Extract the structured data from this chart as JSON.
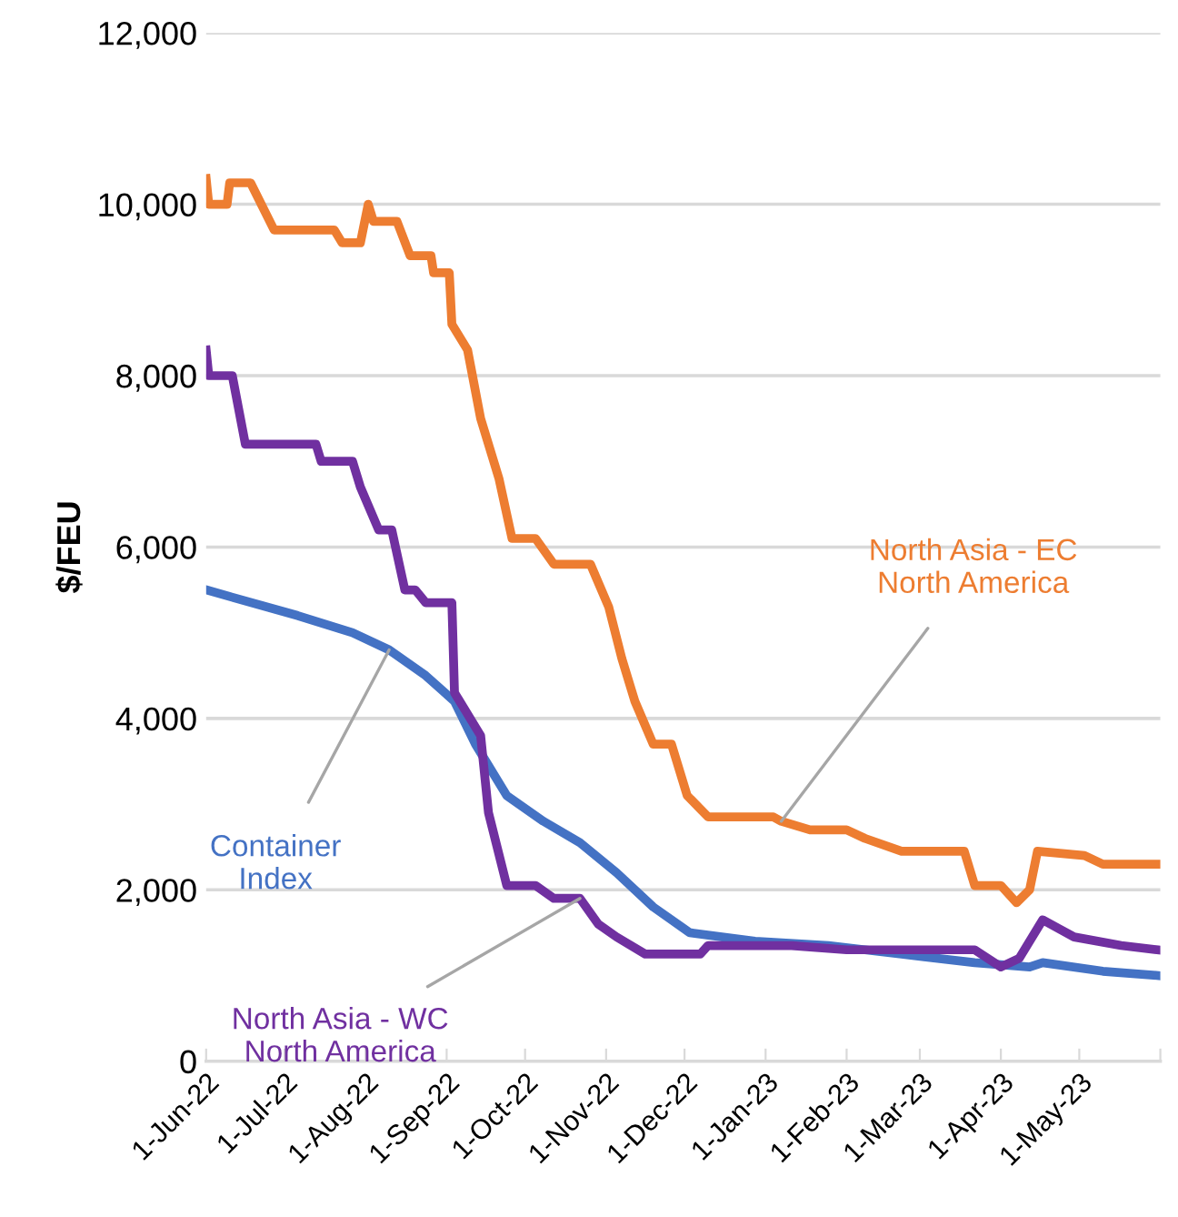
{
  "chart_data": {
    "type": "line",
    "ylabel": "$/FEU",
    "xlim": [
      "2022-06-01",
      "2023-06-01"
    ],
    "xticks": [
      {
        "value": "2022-06-01",
        "label": "1-Jun-22"
      },
      {
        "value": "2022-07-01",
        "label": "1-Jul-22"
      },
      {
        "value": "2022-08-01",
        "label": "1-Aug-22"
      },
      {
        "value": "2022-09-01",
        "label": "1-Sep-22"
      },
      {
        "value": "2022-10-01",
        "label": "1-Oct-22"
      },
      {
        "value": "2022-11-01",
        "label": "1-Nov-22"
      },
      {
        "value": "2022-12-01",
        "label": "1-Dec-22"
      },
      {
        "value": "2023-01-01",
        "label": "1-Jan-23"
      },
      {
        "value": "2023-02-01",
        "label": "1-Feb-23"
      },
      {
        "value": "2023-03-01",
        "label": "1-Mar-23"
      },
      {
        "value": "2023-04-01",
        "label": "1-Apr-23"
      },
      {
        "value": "2023-05-01",
        "label": "1-May-23"
      },
      {
        "value": "2023-06-01",
        "label": null
      }
    ],
    "ylim": [
      0,
      12000
    ],
    "yticks": [
      0,
      {
        "value": 2000,
        "label": "2,000"
      },
      {
        "value": 4000,
        "label": "4,000"
      },
      {
        "value": 6000,
        "label": "6,000"
      },
      {
        "value": 8000,
        "label": "8,000"
      },
      {
        "value": 10000,
        "label": "10,000"
      },
      {
        "value": 12000,
        "label": "12,000"
      }
    ],
    "grid": "y",
    "legend": false,
    "marker": "none",
    "line_style": "solid",
    "series": [
      {
        "name": "North Asia - EC\nNorth America",
        "color": "#ed7d31",
        "x": [
          "2022-06-01",
          "2022-06-02",
          "2022-06-09",
          "2022-06-10",
          "2022-06-18",
          "2022-06-27",
          "2022-07-20",
          "2022-07-23",
          "2022-07-30",
          "2022-08-02",
          "2022-08-04",
          "2022-08-13",
          "2022-08-18",
          "2022-08-26",
          "2022-08-27",
          "2022-09-02",
          "2022-09-03",
          "2022-09-09",
          "2022-09-14",
          "2022-09-21",
          "2022-09-26",
          "2022-10-05",
          "2022-10-12",
          "2022-10-26",
          "2022-11-02",
          "2022-11-07",
          "2022-11-12",
          "2022-11-19",
          "2022-11-26",
          "2022-12-02",
          "2022-12-10",
          "2023-01-04",
          "2023-01-07",
          "2023-01-18",
          "2023-02-01",
          "2023-02-08",
          "2023-02-22",
          "2023-03-18",
          "2023-03-22",
          "2023-04-01",
          "2023-04-07",
          "2023-04-12",
          "2023-04-15",
          "2023-05-03",
          "2023-05-10",
          "2023-05-31"
        ],
        "values": [
          10300,
          10000,
          10000,
          10250,
          10250,
          9700,
          9700,
          9550,
          9550,
          10000,
          9800,
          9800,
          9400,
          9400,
          9200,
          9200,
          8600,
          8300,
          7500,
          6800,
          6100,
          6100,
          5800,
          5800,
          5300,
          4700,
          4200,
          3700,
          3700,
          3100,
          2850,
          2850,
          2800,
          2700,
          2700,
          2600,
          2450,
          2450,
          2050,
          2050,
          1850,
          2000,
          2450,
          2400,
          2300,
          2300
        ]
      },
      {
        "name": "Container\nIndex",
        "color": "#4472c4",
        "x": [
          "2022-06-01",
          "2022-07-06",
          "2022-07-27",
          "2022-08-10",
          "2022-08-24",
          "2022-09-04",
          "2022-09-12",
          "2022-09-24",
          "2022-10-08",
          "2022-10-22",
          "2022-11-05",
          "2022-11-19",
          "2022-12-03",
          "2022-12-28",
          "2023-01-25",
          "2023-02-22",
          "2023-03-22",
          "2023-04-12",
          "2023-04-17",
          "2023-05-10",
          "2023-05-31"
        ],
        "values": [
          5500,
          5200,
          5000,
          4800,
          4500,
          4200,
          3700,
          3100,
          2800,
          2550,
          2200,
          1800,
          1500,
          1400,
          1350,
          1250,
          1150,
          1100,
          1150,
          1050,
          1000
        ]
      },
      {
        "name": "North Asia - WC\nNorth America",
        "color": "#7030a0",
        "x": [
          "2022-06-01",
          "2022-06-02",
          "2022-06-11",
          "2022-06-16",
          "2022-07-13",
          "2022-07-15",
          "2022-07-27",
          "2022-07-30",
          "2022-08-06",
          "2022-08-11",
          "2022-08-16",
          "2022-08-20",
          "2022-08-24",
          "2022-09-03",
          "2022-09-04",
          "2022-09-14",
          "2022-09-17",
          "2022-09-24",
          "2022-10-05",
          "2022-10-12",
          "2022-10-22",
          "2022-10-29",
          "2022-11-05",
          "2022-11-16",
          "2022-12-07",
          "2022-12-10",
          "2023-01-11",
          "2023-02-01",
          "2023-03-22",
          "2023-04-01",
          "2023-04-08",
          "2023-04-17",
          "2023-04-29",
          "2023-05-17",
          "2023-05-31"
        ],
        "values": [
          8300,
          8000,
          8000,
          7200,
          7200,
          7000,
          7000,
          6700,
          6200,
          6200,
          5500,
          5500,
          5350,
          5350,
          4300,
          3800,
          2900,
          2050,
          2050,
          1900,
          1900,
          1600,
          1450,
          1250,
          1250,
          1350,
          1350,
          1300,
          1300,
          1100,
          1200,
          1650,
          1450,
          1350,
          1300
        ]
      }
    ]
  }
}
